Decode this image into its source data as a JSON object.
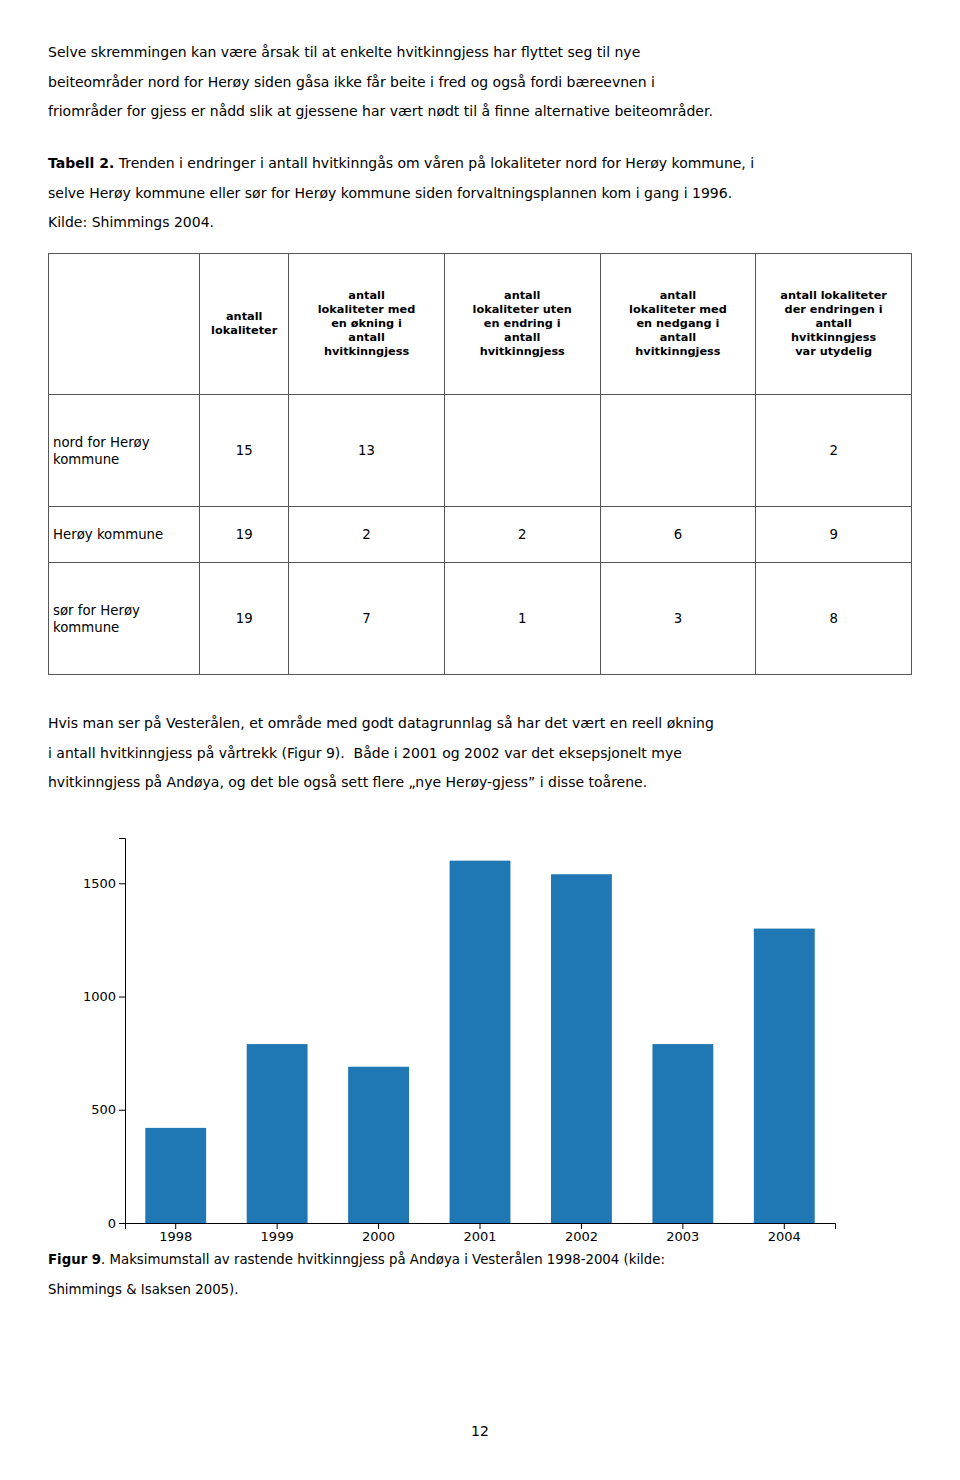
{
  "intro_lines": [
    "Selve skremmingen kan være årsak til at enkelte hvitkinngjess har flyttet seg til nye",
    "beiteområder nord for Herøy siden gåsa ikke får beite i fred og også fordi bæreevnen i",
    "friområder for gjess er nådd slik at gjessene har vært nødt til å finne alternative beiteområder."
  ],
  "table_caption": {
    "label": "Tabell 2.",
    "lines": [
      " Trenden i endringer i antall hvitkinngås om våren på lokaliteter nord for Herøy kommune, i",
      "selve Herøy kommune eller sør for Herøy kommune siden forvaltningsplannen kom i gang i 1996.",
      "Kilde: Shimmings 2004."
    ]
  },
  "table": {
    "headers": [
      null,
      "antall\nlokaliteter",
      "antall\nlokaliteter med\nen økning i\nantall\nhvitkinngjess",
      "antall\nlokaliteter uten\nen endring i\nantall\nhvitkinngjess",
      "antall\nlokaliteter med\nen nedgang i\nantall\nhvitkinngjess",
      "antall lokaliteter\nder endringen i\nantall\nhvitkinngjess\nvar utydelig"
    ],
    "rows": [
      [
        "nord for Herøy\nkommune",
        "15",
        "13",
        null,
        null,
        "2"
      ],
      [
        "Herøy kommune",
        "19",
        "2",
        "2",
        "6",
        "9"
      ],
      [
        "sør for Herøy\nkommune",
        "19",
        "7",
        "1",
        "3",
        "8"
      ]
    ]
  },
  "middle_lines": [
    "Hvis man ser på Vesterålen, et område med godt datagrunnlag så har det vært en reell økning",
    "i antall hvitkinngjess på vårtrekk (Figur 9).  Både i 2001 og 2002 var det eksepsjonelt mye",
    "hvitkinngjess på Andøya, og det ble også sett flere „nye Herøy-gjess” i disse toårene."
  ],
  "chart_data": {
    "type": "bar",
    "categories": [
      "1998",
      "1999",
      "2000",
      "2001",
      "2002",
      "2003",
      "2004"
    ],
    "values": [
      420,
      790,
      690,
      1600,
      1540,
      790,
      1300
    ],
    "ylim": [
      0,
      1700
    ],
    "yticks": [
      0,
      500,
      1000,
      1500
    ],
    "grid": false
  },
  "figure_caption": {
    "label": "Figur 9",
    "lines": [
      ". Maksimumstall av rastende hvitkinngjess på Andøya i Vesterålen 1998-2004 (kilde:",
      "Shimmings & Isaksen 2005)."
    ]
  },
  "page_number": "12"
}
